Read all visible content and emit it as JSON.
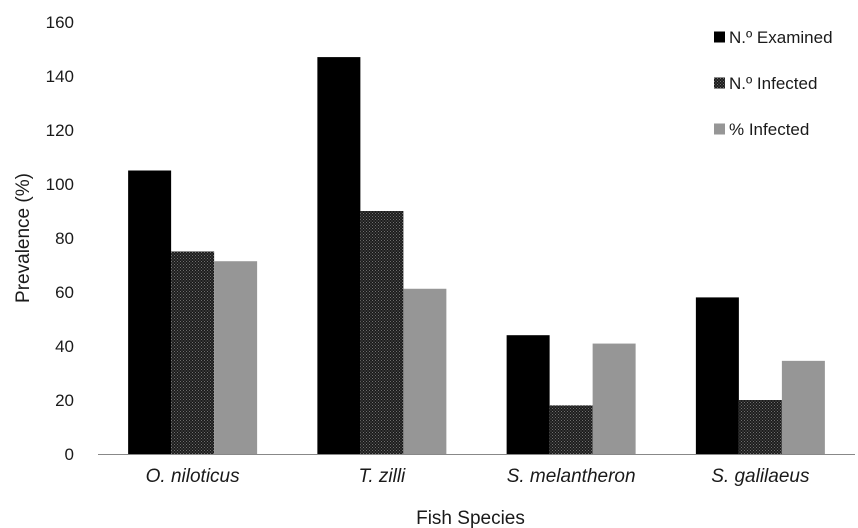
{
  "chart_data": {
    "type": "bar",
    "title": "",
    "xlabel": "Fish Species",
    "ylabel": "Prevalence (%)",
    "ylim": [
      0,
      160
    ],
    "yticks": [
      0,
      20,
      40,
      60,
      80,
      100,
      120,
      140,
      160
    ],
    "grid": false,
    "legend_position": "top-right",
    "categories": [
      "O. niloticus",
      "T. zilli",
      "S. melantheron",
      "S. galilaeus"
    ],
    "series": [
      {
        "name": "N.º Examined",
        "values": [
          105,
          147,
          44,
          58
        ],
        "color": "#000000",
        "pattern": "solid"
      },
      {
        "name": "N.º Infected",
        "values": [
          75,
          90,
          18,
          20
        ],
        "color": "#1a1a1a",
        "pattern": "dotted"
      },
      {
        "name": "% Infected",
        "values": [
          71.4,
          61.2,
          40.9,
          34.5
        ],
        "color": "#969696",
        "pattern": "solid"
      }
    ]
  }
}
